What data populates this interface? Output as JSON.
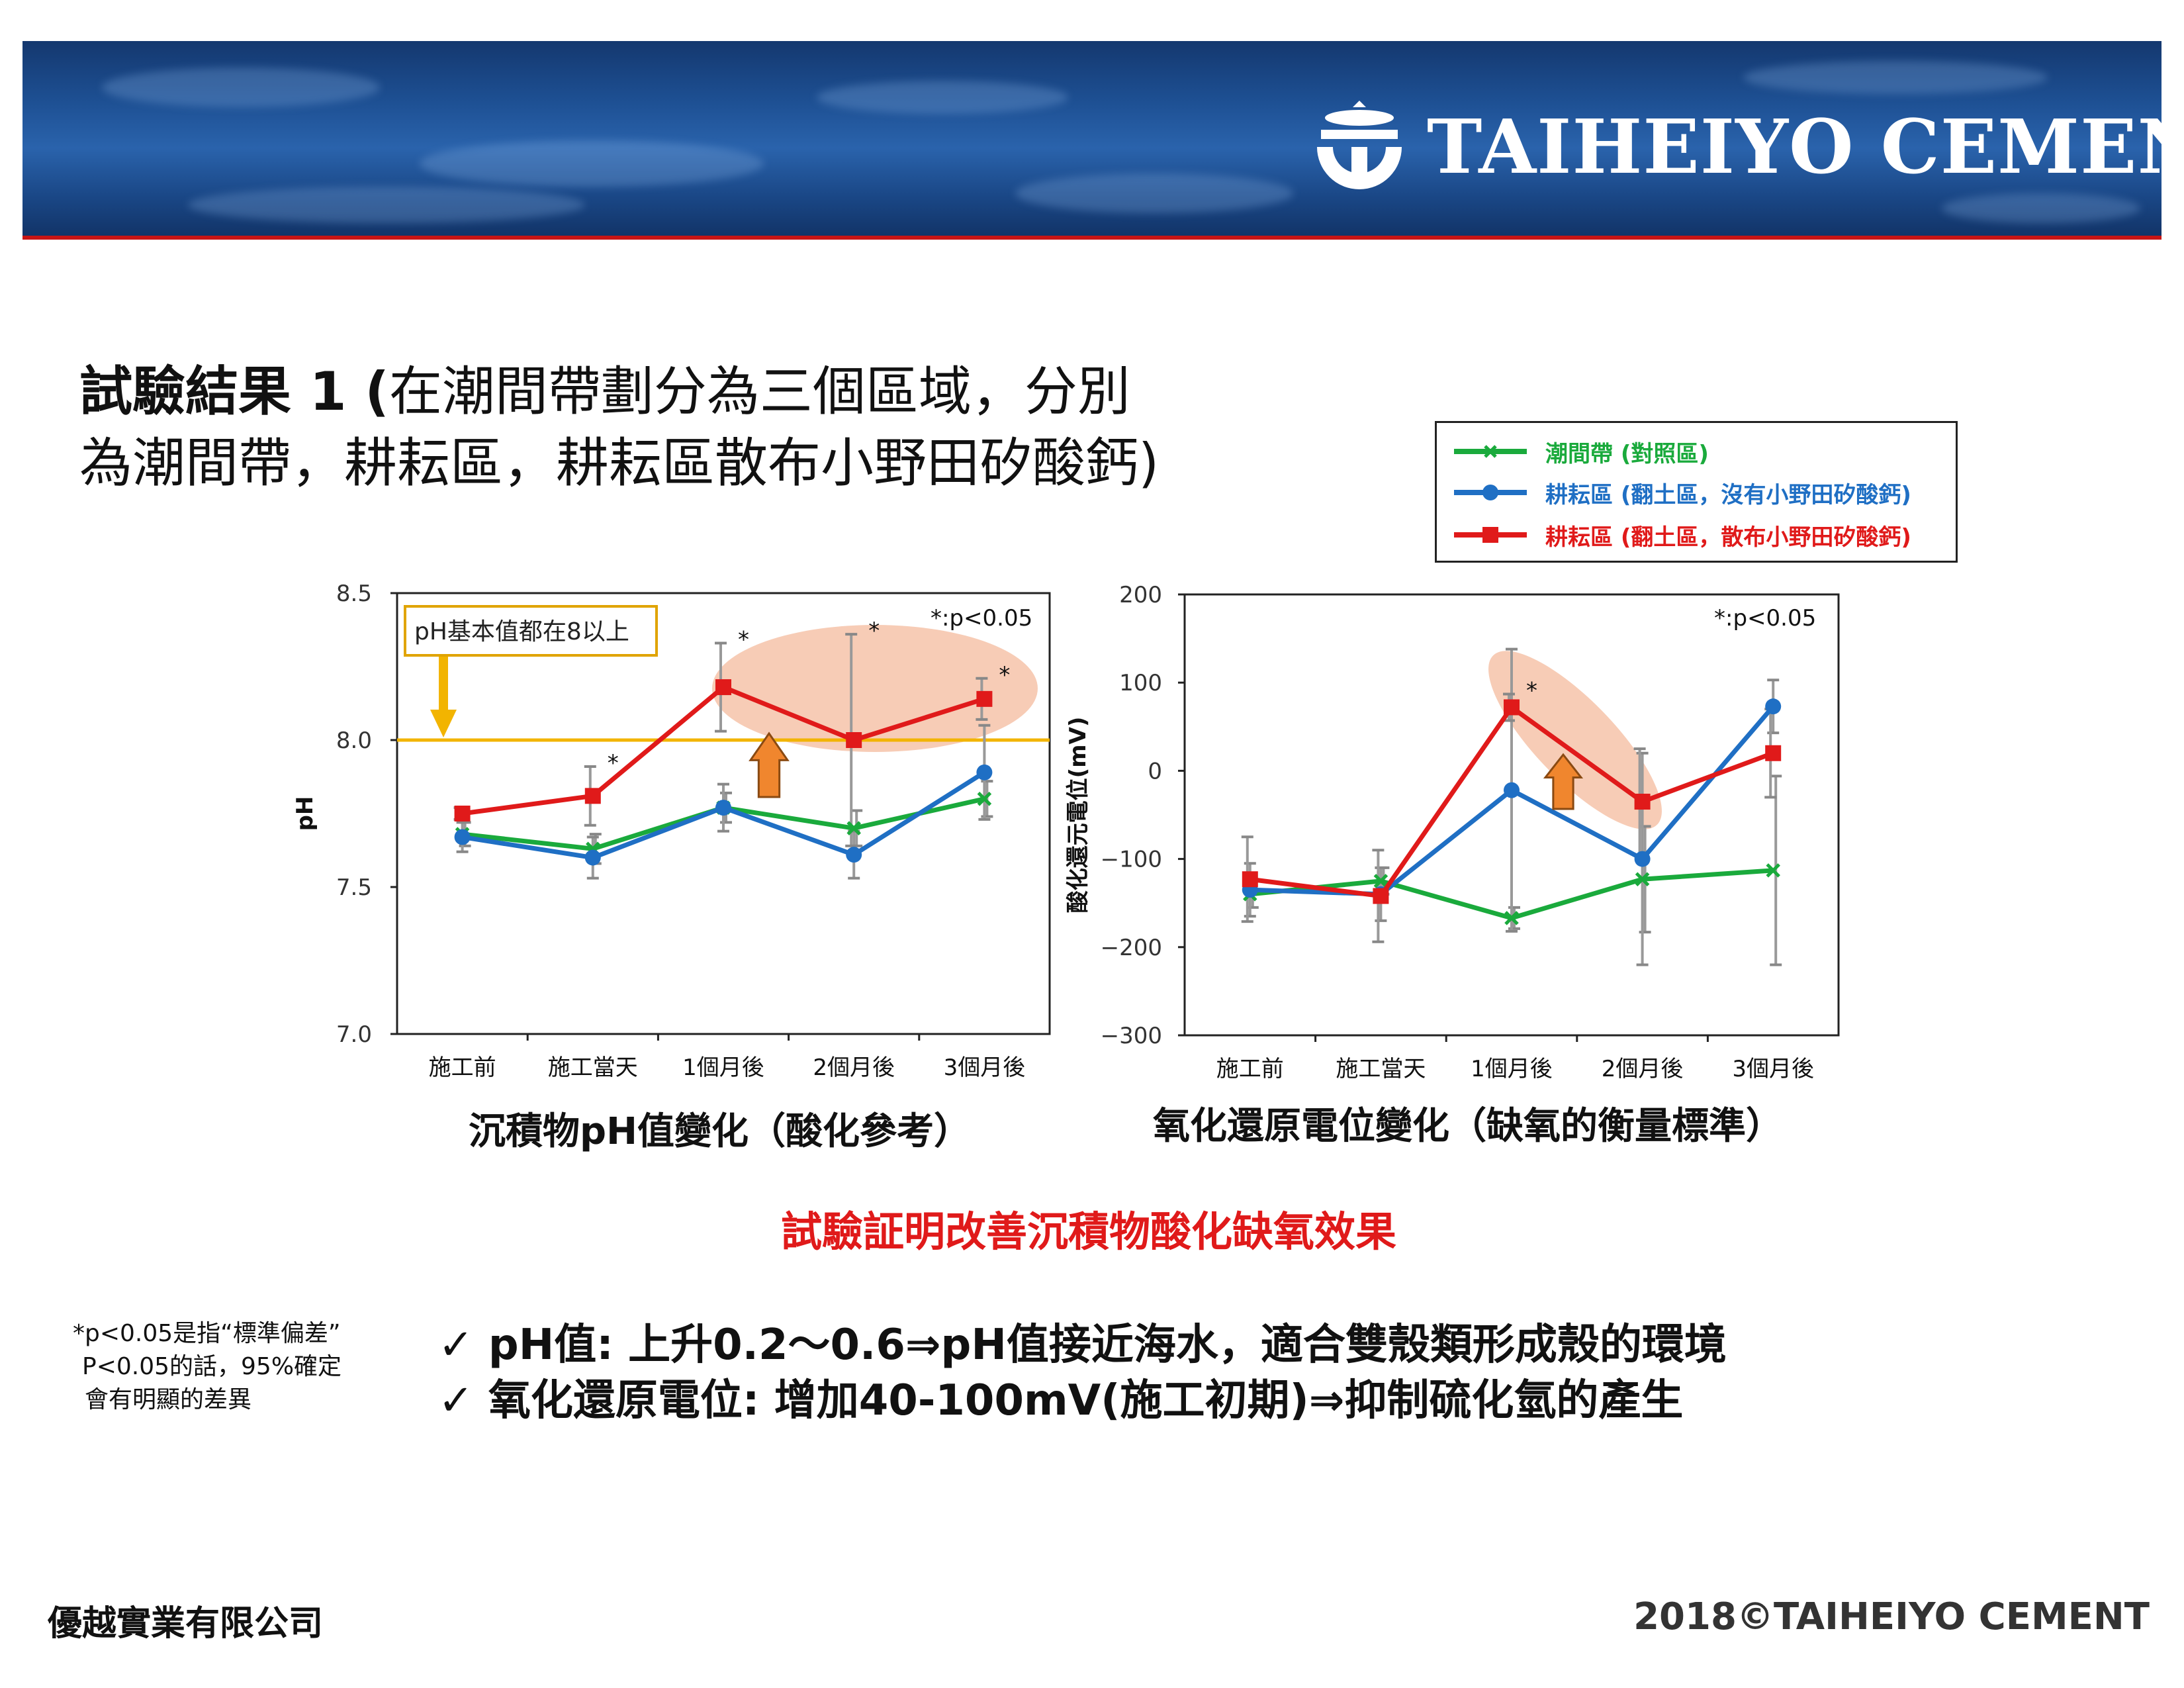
{
  "brand": {
    "logo_text": "TAIHEIYO CEMENT"
  },
  "title": {
    "bold": "試驗結果 1 (",
    "line1": "在潮間帶劃分為三個區域，分別",
    "line2": "為潮間帶，耕耘區，耕耘區散布小野田矽酸鈣)"
  },
  "legend": [
    {
      "label": "潮間帶 (對照區)",
      "color": "#1aaa3c",
      "marker": "x"
    },
    {
      "label": "耕耘區 (翻土區，沒有小野田矽酸鈣)",
      "color": "#1f6fc4",
      "marker": "circle"
    },
    {
      "label": "耕耘區 (翻土區，散布小野田矽酸鈣)",
      "color": "#e01a1a",
      "marker": "square"
    }
  ],
  "chart_data": [
    {
      "type": "line",
      "caption": "沉積物pH值變化（酸化參考）",
      "ylabel": "pH",
      "significance_note": "*:p<0.05",
      "annotation": "pH基本值都在8以上",
      "reference_line": 8.0,
      "ylim": [
        7.0,
        8.5
      ],
      "yticks": [
        "8.5",
        "8.0",
        "7.5",
        "7.0"
      ],
      "categories": [
        "施工前",
        "施工當天",
        "1個月後",
        "2個月後",
        "3個月後"
      ],
      "series": [
        {
          "name": "潮間帶 (對照區)",
          "color": "#1aaa3c",
          "marker": "x",
          "values": [
            7.68,
            7.63,
            7.77,
            7.7,
            7.8
          ],
          "error": [
            0.04,
            0.05,
            0.05,
            0.06,
            0.06
          ]
        },
        {
          "name": "耕耘區 (翻土區，沒有小野田矽酸鈣)",
          "color": "#1f6fc4",
          "marker": "circle",
          "values": [
            7.67,
            7.6,
            7.77,
            7.61,
            7.89
          ],
          "error": [
            0.05,
            0.07,
            0.08,
            0.08,
            0.16
          ]
        },
        {
          "name": "耕耘區 (翻土區，散布小野田矽酸鈣)",
          "color": "#e01a1a",
          "marker": "square",
          "values": [
            7.75,
            7.81,
            8.18,
            8.0,
            8.14
          ],
          "error": [
            0.02,
            0.1,
            0.15,
            0.36,
            0.07
          ]
        }
      ],
      "asterisks": [
        1,
        2,
        3,
        4
      ]
    },
    {
      "type": "line",
      "caption": "氧化還原電位變化（缺氧的衡量標準）",
      "ylabel": "酸化還元電位(mV)",
      "significance_note": "*:p<0.05",
      "ylim": [
        -300,
        200
      ],
      "yticks": [
        "200",
        "100",
        "0",
        "−100",
        "−200",
        "−300"
      ],
      "categories": [
        "施工前",
        "施工當天",
        "1個月後",
        "2個月後",
        "3個月後"
      ],
      "series": [
        {
          "name": "潮間帶 (對照區)",
          "color": "#1aaa3c",
          "marker": "x",
          "values": [
            -140,
            -125,
            -167,
            -123,
            -113
          ],
          "error": [
            15,
            15,
            12,
            60,
            107
          ]
        },
        {
          "name": "耕耘區 (翻土區，沒有小野田矽酸鈣)",
          "color": "#1f6fc4",
          "marker": "circle",
          "values": [
            -135,
            -140,
            -22,
            -100,
            73
          ],
          "error": [
            30,
            30,
            160,
            120,
            30
          ]
        },
        {
          "name": "耕耘區 (翻土區，散布小野田矽酸鈣)",
          "color": "#e01a1a",
          "marker": "square",
          "values": [
            -123,
            -142,
            72,
            -35,
            20
          ],
          "error": [
            48,
            52,
            15,
            60,
            50
          ]
        }
      ],
      "asterisks": [
        2
      ]
    }
  ],
  "conclusion": "試驗証明改善沉積物酸化缺氧效果",
  "note": [
    "*p<0.05是指“標準偏差”",
    "P<0.05的話，95%確定",
    "會有明顯的差異"
  ],
  "bullets": [
    "✓ pH值: 上升0.2～0.6⇒pH值接近海水，適合雙殼類形成殼的環境",
    "✓ 氧化還原電位: 增加40-100mV(施工初期)⇒抑制硫化氫的產生"
  ],
  "footer": {
    "left": "優越實業有限公司",
    "right": "2018©TAIHEIYO CEMENT"
  }
}
